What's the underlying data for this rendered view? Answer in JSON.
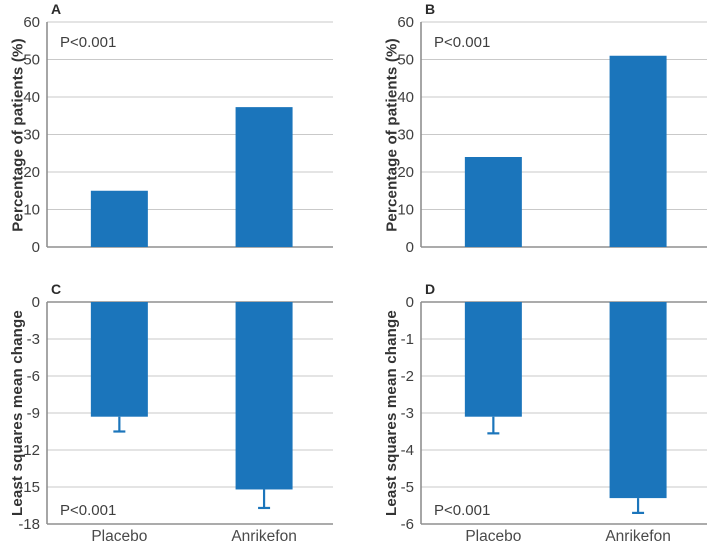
{
  "style": {
    "bar_color": "#1b75bb",
    "error_bar_color": "#1b75bb",
    "grid_color": "#c9c9c9",
    "axis_color": "#8f8f8f",
    "tick_label_color": "#3f3f3f",
    "category_label_color": "#4a4a4a",
    "panel_letter_color": "#2b2b2b",
    "annotation_color": "#3f3f3f",
    "background": "#ffffff"
  },
  "chart_data": [
    {
      "type": "bar",
      "panel_label": "A",
      "ylabel": "Percentage of patients (%)",
      "xlabel": "",
      "categories": [
        "Placebo",
        "Anrikefon"
      ],
      "values": [
        15,
        37.3
      ],
      "ylim": [
        0,
        60
      ],
      "yticks": [
        60,
        50,
        40,
        30,
        20,
        10,
        0
      ],
      "strong_ticks": [
        0
      ],
      "grid": true,
      "annotation": "P<0.001",
      "annotation_pos": "top-left",
      "show_x_labels": false
    },
    {
      "type": "bar",
      "panel_label": "B",
      "ylabel": "Percentage of patients (%)",
      "xlabel": "",
      "categories": [
        "Placebo",
        "Anrikefon"
      ],
      "values": [
        24,
        51
      ],
      "ylim": [
        0,
        60
      ],
      "yticks": [
        60,
        50,
        40,
        30,
        20,
        10,
        0
      ],
      "strong_ticks": [
        0
      ],
      "grid": true,
      "annotation": "P<0.001",
      "annotation_pos": "top-left",
      "show_x_labels": false
    },
    {
      "type": "bar",
      "panel_label": "C",
      "ylabel": "Least squares mean change",
      "xlabel": "",
      "categories": [
        "Placebo",
        "Anrikefon"
      ],
      "values": [
        -9.3,
        -15.2
      ],
      "errors": [
        1.2,
        1.5
      ],
      "ylim": [
        -18,
        0
      ],
      "yticks": [
        0,
        -3,
        -6,
        -9,
        -12,
        -15,
        -18
      ],
      "strong_ticks": [
        0,
        -18
      ],
      "grid": true,
      "annotation": "P<0.001",
      "annotation_pos": "bottom-left",
      "show_x_labels": true
    },
    {
      "type": "bar",
      "panel_label": "D",
      "ylabel": "Least squares mean change",
      "xlabel": "",
      "categories": [
        "Placebo",
        "Anrikefon"
      ],
      "values": [
        -3.1,
        -5.3
      ],
      "errors": [
        0.45,
        0.4
      ],
      "ylim": [
        -6,
        0
      ],
      "yticks": [
        0,
        -1,
        -2,
        -3,
        -4,
        -5,
        -6
      ],
      "strong_ticks": [
        0,
        -6
      ],
      "grid": true,
      "annotation": "P<0.001",
      "annotation_pos": "bottom-left",
      "show_x_labels": true
    }
  ]
}
